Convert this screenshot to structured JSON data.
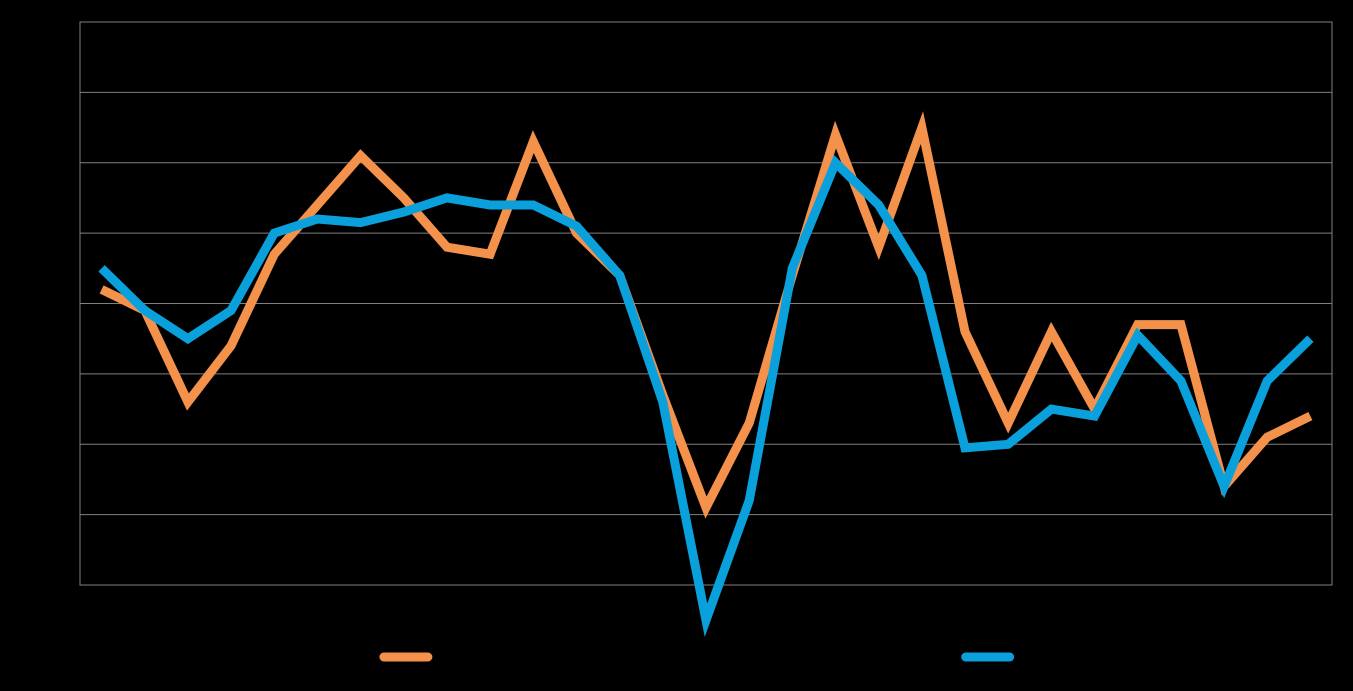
{
  "chart_data": {
    "type": "line",
    "title": "",
    "xlabel": "",
    "ylabel": "",
    "x": [
      1,
      2,
      3,
      4,
      5,
      6,
      7,
      8,
      9,
      10,
      11,
      12,
      13,
      14,
      15,
      16,
      17,
      18,
      19,
      20,
      21,
      22,
      23,
      24,
      25,
      26,
      27,
      28,
      29
    ],
    "ylim": [
      -4,
      4
    ],
    "grid": true,
    "legend_position": "bottom",
    "series": [
      {
        "color": "#F4914A",
        "values": [
          0.2,
          -0.1,
          -1.4,
          -0.6,
          0.7,
          1.4,
          2.1,
          1.5,
          0.8,
          0.7,
          2.3,
          1.0,
          0.4,
          -1.3,
          -2.9,
          -1.7,
          0.4,
          2.4,
          0.8,
          2.5,
          -0.4,
          -1.7,
          -0.4,
          -1.5,
          -0.3,
          -0.3,
          -2.6,
          -1.9,
          -1.6
        ],
        "legend_x_fraction": 0.3
      },
      {
        "color": "#0AA0DC",
        "values": [
          0.5,
          -0.1,
          -0.5,
          -0.1,
          1.0,
          1.2,
          1.15,
          1.3,
          1.5,
          1.4,
          1.4,
          1.1,
          0.4,
          -1.4,
          -4.5,
          -2.8,
          0.5,
          2.0,
          1.4,
          0.4,
          -2.05,
          -2.0,
          -1.5,
          -1.6,
          -0.45,
          -1.1,
          -2.6,
          -1.1,
          -0.5
        ],
        "legend_x_fraction": 0.73
      }
    ]
  }
}
